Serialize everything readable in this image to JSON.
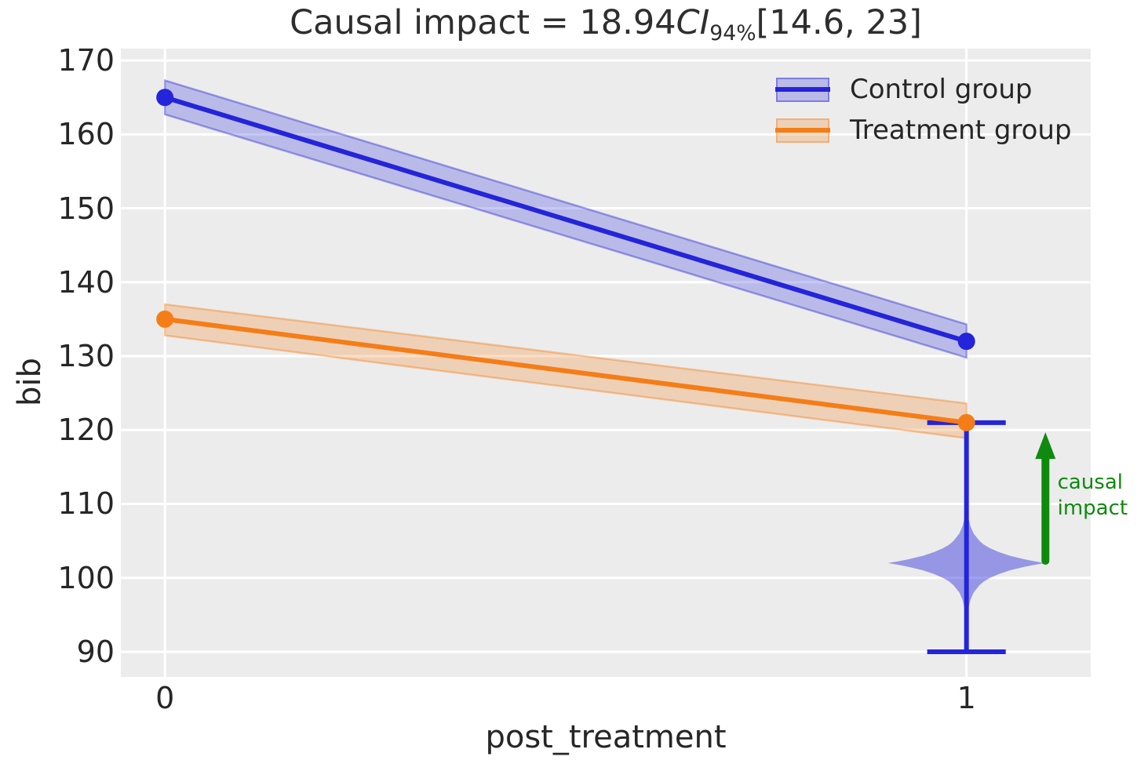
{
  "figure": {
    "title": {
      "prefix": "Causal impact = 18.94",
      "ci": "CI",
      "ci_sub": "94%",
      "interval": "[14.6, 23]"
    },
    "xlabel": "post_treatment",
    "ylabel": "bib"
  },
  "legend": {
    "items": [
      {
        "label": "Control group",
        "line_color": "#2424da",
        "band_fill": "rgba(36,36,218,0.25)",
        "band_edge": "rgba(36,36,218,0.40)"
      },
      {
        "label": "Treatment group",
        "line_color": "#f57d17",
        "band_fill": "rgba(245,125,23,0.25)",
        "band_edge": "rgba(245,125,23,0.40)"
      }
    ]
  },
  "annotation": {
    "line1": "causal",
    "line2": "impact",
    "color": "#0e8a0e"
  },
  "chart_data": {
    "type": "line",
    "title": "Causal impact = 18.94 CI_94% [14.6, 23]",
    "xlabel": "post_treatment",
    "ylabel": "bib",
    "grid": true,
    "plot_bg": "#ececec",
    "grid_color": "#ffffff",
    "x": [
      0,
      1
    ],
    "xticks": [
      0,
      1
    ],
    "yticks": [
      90,
      100,
      110,
      120,
      130,
      140,
      150,
      160,
      170
    ],
    "xlim": [
      -0.055,
      1.155
    ],
    "ylim": [
      86.6,
      171.6
    ],
    "legend_position": "upper right",
    "series": [
      {
        "name": "Control group",
        "color": "#2424da",
        "values": [
          165,
          132
        ],
        "band_lower": [
          162.7,
          129.8
        ],
        "band_upper": [
          167.3,
          134.3
        ],
        "band_fill": "rgba(36,36,218,0.25)",
        "band_edge": "rgba(36,36,218,0.40)"
      },
      {
        "name": "Treatment group",
        "color": "#f57d17",
        "values": [
          135,
          121
        ],
        "band_lower": [
          132.8,
          118.9
        ],
        "band_upper": [
          137.0,
          123.6
        ],
        "band_fill": "rgba(245,125,23,0.25)",
        "band_edge": "rgba(245,125,23,0.40)"
      }
    ],
    "violin": {
      "x": 1,
      "center": 102,
      "fill": "rgba(47,47,221,0.45)",
      "whisker_color": "#2424da",
      "whisker_low": 90,
      "whisker_high": 121,
      "cap_halfwidth": 0.049,
      "max_halfwidth": 0.098,
      "profile": [
        [
          -10,
          0.003
        ],
        [
          -9,
          0.005
        ],
        [
          -8,
          0.008
        ],
        [
          -7,
          0.015
        ],
        [
          -6,
          0.027
        ],
        [
          -5,
          0.05
        ],
        [
          -4,
          0.09
        ],
        [
          -3,
          0.165
        ],
        [
          -2.5,
          0.22
        ],
        [
          -2,
          0.3
        ],
        [
          -1.5,
          0.41
        ],
        [
          -1,
          0.55
        ],
        [
          -0.5,
          0.74
        ],
        [
          -0.25,
          0.86
        ],
        [
          0,
          1.0
        ],
        [
          0.25,
          0.86
        ],
        [
          0.5,
          0.74
        ],
        [
          1,
          0.55
        ],
        [
          1.5,
          0.41
        ],
        [
          2,
          0.3
        ],
        [
          2.5,
          0.22
        ],
        [
          3,
          0.165
        ],
        [
          4,
          0.09
        ],
        [
          5,
          0.05
        ],
        [
          6,
          0.027
        ],
        [
          7,
          0.015
        ],
        [
          8,
          0.008
        ],
        [
          9,
          0.005
        ],
        [
          10,
          0.003
        ]
      ]
    },
    "arrow": {
      "x": 1.0985,
      "from": 102.3,
      "to": 119.7,
      "color": "#0e8a0e",
      "label": [
        "causal",
        "impact"
      ],
      "label_x": 1.1135,
      "label_top": 114.6
    }
  }
}
